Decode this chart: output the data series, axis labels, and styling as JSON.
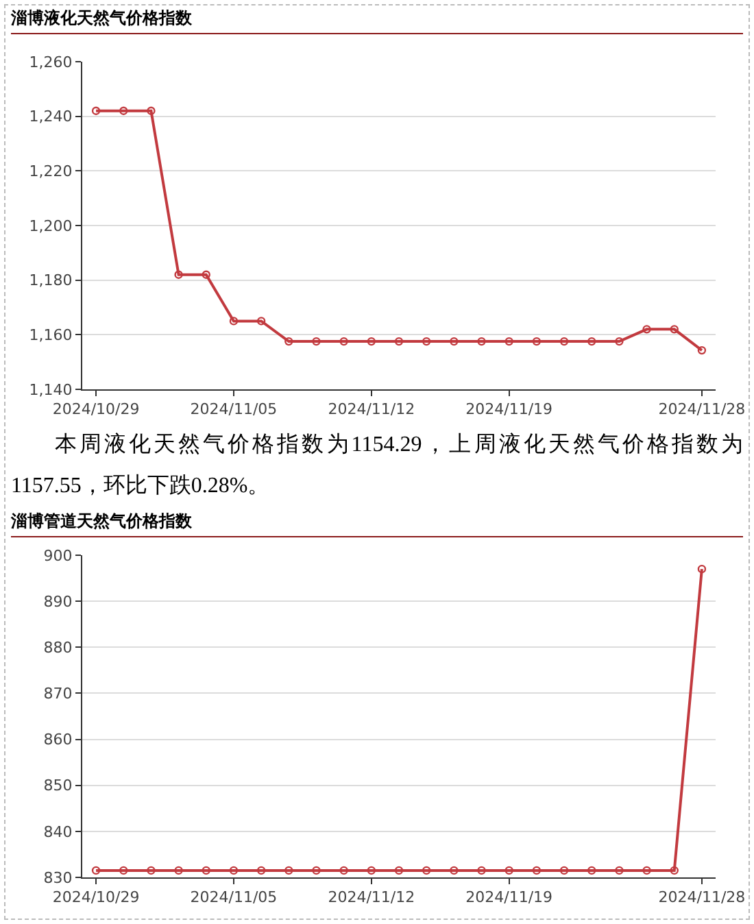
{
  "chart_data": [
    {
      "type": "line",
      "title": "淄博液化天然气价格指数",
      "categories": [
        "2024/10/29",
        null,
        null,
        null,
        null,
        "2024/11/05",
        null,
        null,
        null,
        null,
        "2024/11/12",
        null,
        null,
        null,
        null,
        "2024/11/19",
        null,
        null,
        null,
        null,
        null,
        null,
        "2024/11/28"
      ],
      "series": [
        {
          "color": "#c23a3f",
          "values": [
            1242,
            1242,
            1242,
            1182,
            1182,
            1165,
            1165,
            1157.55,
            1157.55,
            1157.55,
            1157.55,
            1157.55,
            1157.55,
            1157.55,
            1157.55,
            1157.55,
            1157.55,
            1157.55,
            1157.55,
            1157.55,
            1162,
            1162,
            1154.29
          ]
        }
      ],
      "ylim": [
        1140,
        1260
      ],
      "yticks": [
        {
          "value": 1140,
          "label": "1,140"
        },
        {
          "value": 1160,
          "label": "1,160"
        },
        {
          "value": 1180,
          "label": "1,180"
        },
        {
          "value": 1200,
          "label": "1,200"
        },
        {
          "value": 1220,
          "label": "1,220"
        },
        {
          "value": 1240,
          "label": "1,240"
        },
        {
          "value": 1260,
          "label": "1,260"
        }
      ],
      "grid": "y",
      "marker": "circle",
      "annotations": [
        "本周液化天然气价格指数为1154.29，上周液化天然气价格指数为1157.55，环比下跌0.28%。"
      ]
    },
    {
      "type": "line",
      "title": "淄博管道天然气价格指数",
      "categories": [
        "2024/10/29",
        null,
        null,
        null,
        null,
        "2024/11/05",
        null,
        null,
        null,
        null,
        "2024/11/12",
        null,
        null,
        null,
        null,
        "2024/11/19",
        null,
        null,
        null,
        null,
        null,
        null,
        "2024/11/28"
      ],
      "series": [
        {
          "color": "#c23a3f",
          "values": [
            831.5,
            831.5,
            831.5,
            831.5,
            831.5,
            831.5,
            831.5,
            831.5,
            831.5,
            831.5,
            831.5,
            831.5,
            831.5,
            831.5,
            831.5,
            831.5,
            831.5,
            831.5,
            831.5,
            831.5,
            831.5,
            831.5,
            897
          ]
        }
      ],
      "ylim": [
        830,
        900
      ],
      "yticks": [
        830,
        840,
        850,
        860,
        870,
        880,
        890,
        900
      ],
      "grid": "y",
      "marker": "circle"
    }
  ]
}
